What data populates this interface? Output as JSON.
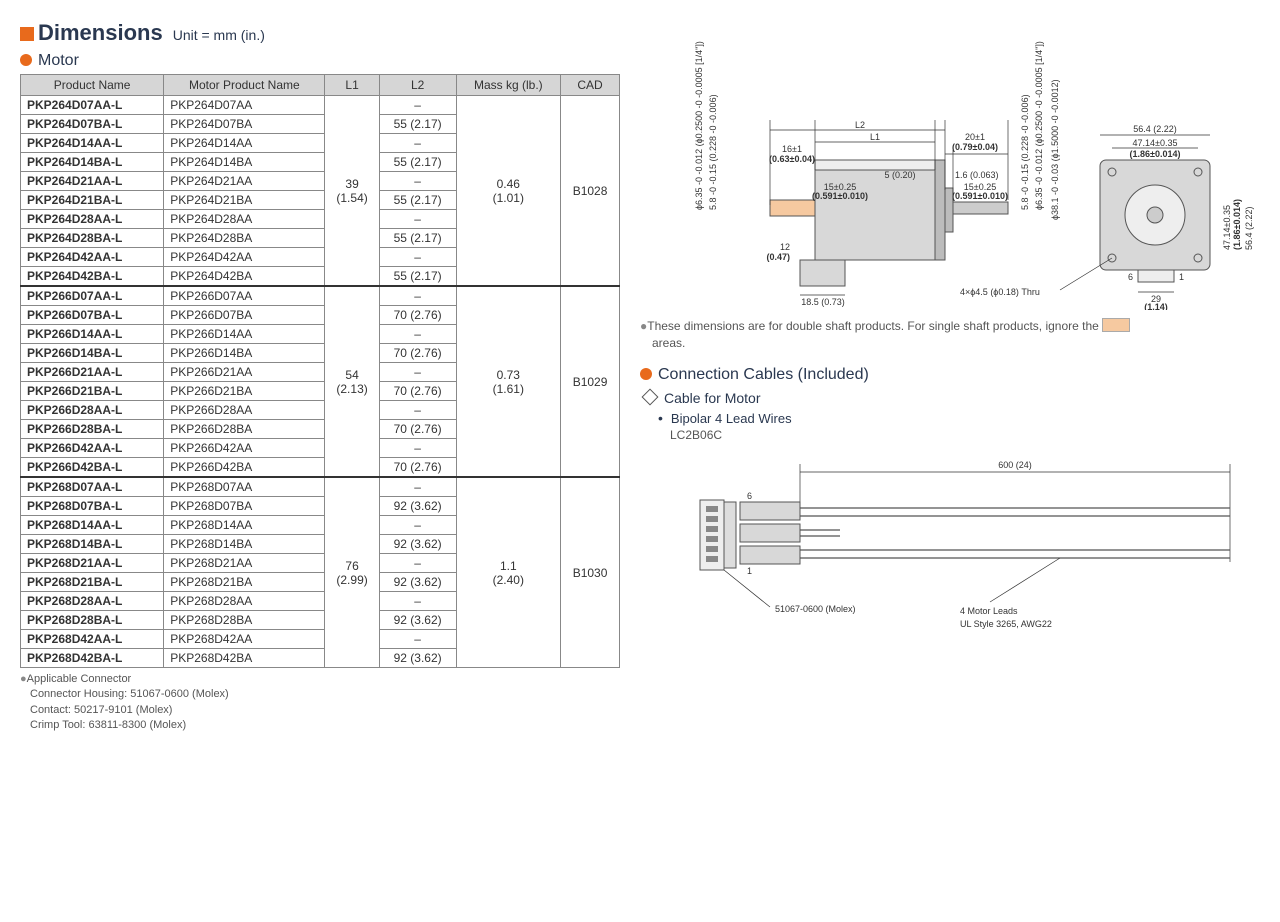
{
  "header": {
    "title": "Dimensions",
    "unit": "Unit = mm (in.)"
  },
  "motor_section": {
    "heading": "Motor",
    "columns": [
      "Product Name",
      "Motor Product Name",
      "L1",
      "L2",
      "Mass kg (lb.)",
      "CAD"
    ],
    "groups": [
      {
        "L1": "39\n(1.54)",
        "mass": "0.46\n(1.01)",
        "cad": "B1028",
        "rows": [
          {
            "pn": "PKP264D07AA-L",
            "mpn": "PKP264D07AA",
            "L2": "–"
          },
          {
            "pn": "PKP264D07BA-L",
            "mpn": "PKP264D07BA",
            "L2": "55 (2.17)"
          },
          {
            "pn": "PKP264D14AA-L",
            "mpn": "PKP264D14AA",
            "L2": "–"
          },
          {
            "pn": "PKP264D14BA-L",
            "mpn": "PKP264D14BA",
            "L2": "55 (2.17)"
          },
          {
            "pn": "PKP264D21AA-L",
            "mpn": "PKP264D21AA",
            "L2": "–"
          },
          {
            "pn": "PKP264D21BA-L",
            "mpn": "PKP264D21BA",
            "L2": "55 (2.17)"
          },
          {
            "pn": "PKP264D28AA-L",
            "mpn": "PKP264D28AA",
            "L2": "–"
          },
          {
            "pn": "PKP264D28BA-L",
            "mpn": "PKP264D28BA",
            "L2": "55 (2.17)"
          },
          {
            "pn": "PKP264D42AA-L",
            "mpn": "PKP264D42AA",
            "L2": "–"
          },
          {
            "pn": "PKP264D42BA-L",
            "mpn": "PKP264D42BA",
            "L2": "55 (2.17)"
          }
        ]
      },
      {
        "L1": "54\n(2.13)",
        "mass": "0.73\n(1.61)",
        "cad": "B1029",
        "rows": [
          {
            "pn": "PKP266D07AA-L",
            "mpn": "PKP266D07AA",
            "L2": "–"
          },
          {
            "pn": "PKP266D07BA-L",
            "mpn": "PKP266D07BA",
            "L2": "70 (2.76)"
          },
          {
            "pn": "PKP266D14AA-L",
            "mpn": "PKP266D14AA",
            "L2": "–"
          },
          {
            "pn": "PKP266D14BA-L",
            "mpn": "PKP266D14BA",
            "L2": "70 (2.76)"
          },
          {
            "pn": "PKP266D21AA-L",
            "mpn": "PKP266D21AA",
            "L2": "–"
          },
          {
            "pn": "PKP266D21BA-L",
            "mpn": "PKP266D21BA",
            "L2": "70 (2.76)"
          },
          {
            "pn": "PKP266D28AA-L",
            "mpn": "PKP266D28AA",
            "L2": "–"
          },
          {
            "pn": "PKP266D28BA-L",
            "mpn": "PKP266D28BA",
            "L2": "70 (2.76)"
          },
          {
            "pn": "PKP266D42AA-L",
            "mpn": "PKP266D42AA",
            "L2": "–"
          },
          {
            "pn": "PKP266D42BA-L",
            "mpn": "PKP266D42BA",
            "L2": "70 (2.76)"
          }
        ]
      },
      {
        "L1": "76\n(2.99)",
        "mass": "1.1\n(2.40)",
        "cad": "B1030",
        "rows": [
          {
            "pn": "PKP268D07AA-L",
            "mpn": "PKP268D07AA",
            "L2": "–"
          },
          {
            "pn": "PKP268D07BA-L",
            "mpn": "PKP268D07BA",
            "L2": "92 (3.62)"
          },
          {
            "pn": "PKP268D14AA-L",
            "mpn": "PKP268D14AA",
            "L2": "–"
          },
          {
            "pn": "PKP268D14BA-L",
            "mpn": "PKP268D14BA",
            "L2": "92 (3.62)"
          },
          {
            "pn": "PKP268D21AA-L",
            "mpn": "PKP268D21AA",
            "L2": "–"
          },
          {
            "pn": "PKP268D21BA-L",
            "mpn": "PKP268D21BA",
            "L2": "92 (3.62)"
          },
          {
            "pn": "PKP268D28AA-L",
            "mpn": "PKP268D28AA",
            "L2": "–"
          },
          {
            "pn": "PKP268D28BA-L",
            "mpn": "PKP268D28BA",
            "L2": "92 (3.62)"
          },
          {
            "pn": "PKP268D42AA-L",
            "mpn": "PKP268D42AA",
            "L2": "–"
          },
          {
            "pn": "PKP268D42BA-L",
            "mpn": "PKP268D42BA",
            "L2": "92 (3.62)"
          }
        ]
      }
    ],
    "footnote": {
      "lead": "Applicable Connector",
      "lines": [
        "Connector Housing: 51067-0600 (Molex)",
        "Contact: 50217-9101 (Molex)",
        "Crimp Tool: 63811-8300 (Molex)"
      ]
    }
  },
  "motor_diagram": {
    "note": "These dimensions are for double shaft products. For single shaft products, ignore the",
    "note_tail": "areas.",
    "dims": {
      "L2": "L2",
      "L1": "L1",
      "d16": "16±1",
      "d16b": "(0.63±0.04)",
      "d20": "20±1",
      "d20b": "(0.79±0.04)",
      "d5": "5 (0.20)",
      "d1_6": "1.6 (0.063)",
      "d15a": "15±0.25",
      "d15ab": "(0.591±0.010)",
      "d15b": "15±0.25",
      "d15bb": "(0.591±0.010)",
      "shaft_l": "ϕ6.35 -0 -0.012 (ϕ0.2500 -0 -0.0005 [1/4\"])",
      "flat_l": "5.8 -0 -0.15 (0.228 -0 -0.006)",
      "shaft_r": "ϕ6.35 -0 -0.012 (ϕ0.2500 -0 -0.0005 [1/4\"])",
      "flat_r": "5.8 -0 -0.15 (0.228 -0 -0.006)",
      "pilot": "ϕ38.1 -0 -0.03 (ϕ1.5000 -0 -0.0012)",
      "d12": "12",
      "d12b": "(0.47)",
      "d18_5": "18.5 (0.73)",
      "sq56": "56.4 (2.22)",
      "sq47": "47.14±0.35",
      "sq47b": "(1.86±0.014)",
      "holes": "4×ϕ4.5 (ϕ0.18) Thru",
      "conn29": "29",
      "conn29b": "(1.14)",
      "pin6": "6",
      "pin1": "1"
    }
  },
  "cables_section": {
    "heading": "Connection Cables (Included)",
    "sub": "Cable for Motor",
    "bullet": "Bipolar 4 Lead Wires",
    "code": "LC2B06C",
    "length": "600 (24)",
    "conn_label": "51067-0600 (Molex)",
    "leads_label1": "4 Motor Leads",
    "leads_label2": "UL Style 3265, AWG22",
    "pin6": "6",
    "pin1": "1"
  },
  "colors": {
    "orange": "#e86a1c",
    "navy": "#2a3850",
    "peach": "#f6c9a0",
    "grey_fill": "#d8d8d8",
    "grey_line": "#888"
  }
}
